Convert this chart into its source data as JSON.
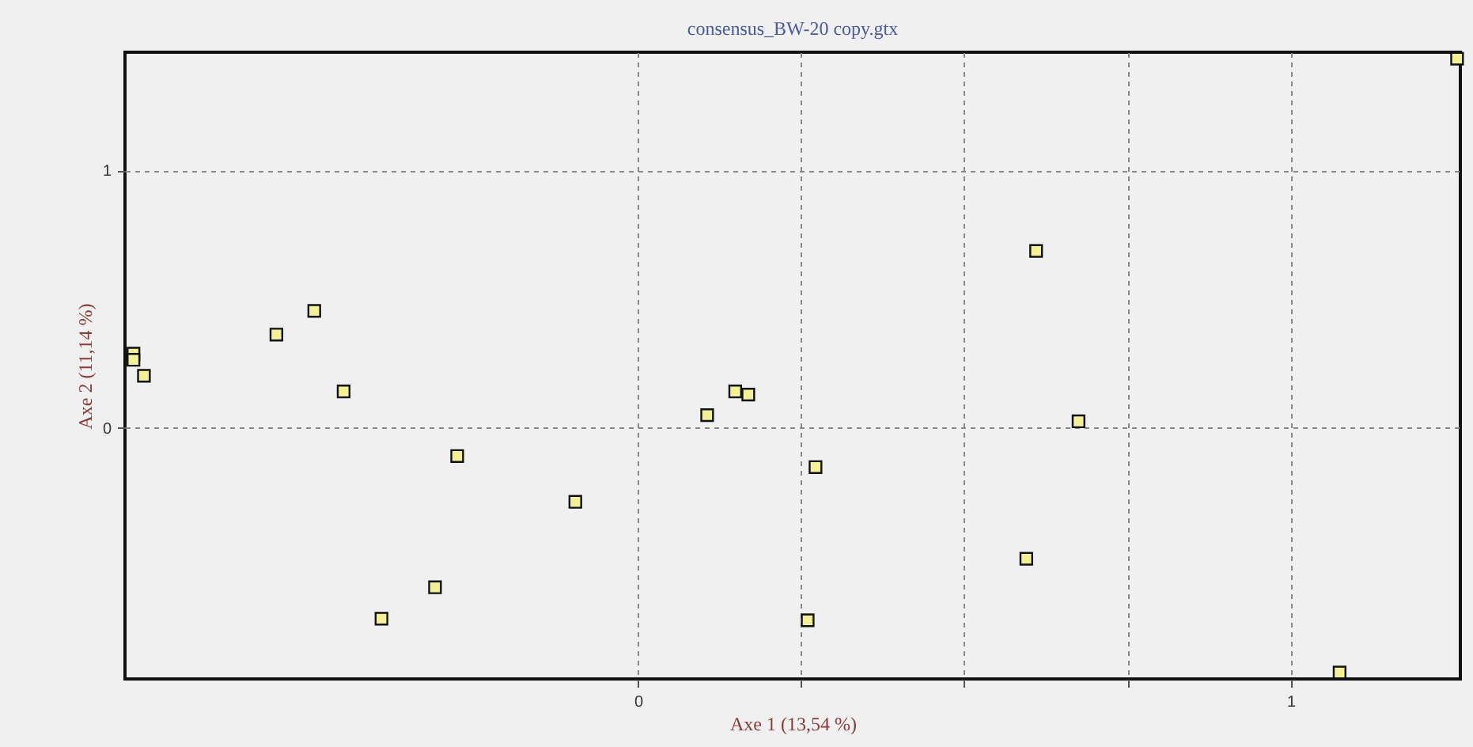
{
  "chart_data": {
    "type": "scatter",
    "title": "consensus_BW-20 copy.gtx",
    "xlabel": "Axe 1 (13,54 %)",
    "ylabel": "Axe 2 (11,14 %)",
    "xlim": [
      -0.786,
      1.26
    ],
    "ylim": [
      -0.976,
      1.459
    ],
    "xticks": [
      0,
      {
        "value": 0.25,
        "label": null
      },
      {
        "value": 0.5,
        "label": null
      },
      {
        "value": 0.75,
        "label": null
      },
      1
    ],
    "yticks": [
      0,
      1
    ],
    "grid": true,
    "marker": "square",
    "series": [
      {
        "color": "#f3f09a",
        "x": [
          -0.773,
          -0.773,
          -0.757,
          -0.554,
          -0.496,
          -0.451,
          -0.277,
          -0.096,
          -0.393,
          -0.311,
          0.106,
          0.149,
          0.169,
          0.272,
          0.26,
          0.61,
          0.675,
          0.595,
          1.075,
          1.255
        ],
        "values": [
          0.288,
          0.264,
          0.202,
          0.362,
          0.454,
          0.141,
          -0.11,
          -0.288,
          -0.742,
          -0.62,
          0.049,
          0.141,
          0.129,
          -0.153,
          -0.748,
          0.687,
          0.025,
          -0.509,
          -0.951,
          1.434
        ]
      }
    ]
  }
}
